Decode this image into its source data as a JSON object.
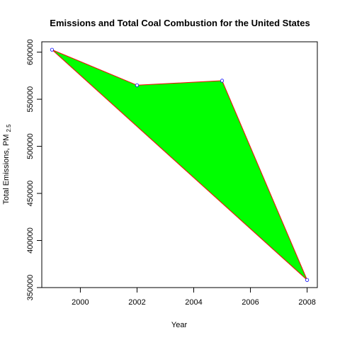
{
  "chart_data": {
    "type": "area",
    "title": "Emissions and Total Coal Combustion for the United States",
    "xlabel": "Year",
    "ylabel": "Total Emissions, PM",
    "ylabel_subscript": "2.5",
    "x": [
      1999,
      2002,
      2005,
      2008
    ],
    "y": [
      602600,
      564900,
      569700,
      358100
    ],
    "xlim": [
      1998.64,
      2008.36
    ],
    "ylim": [
      350000,
      611000
    ],
    "x_ticks": [
      2000,
      2002,
      2004,
      2006,
      2008
    ],
    "y_ticks": [
      350000,
      400000,
      450000,
      500000,
      550000,
      600000
    ],
    "fill_color": "#00ff00",
    "line_color": "#ff0000",
    "point_color": "#0000ff",
    "grid": false,
    "legend": "none"
  }
}
